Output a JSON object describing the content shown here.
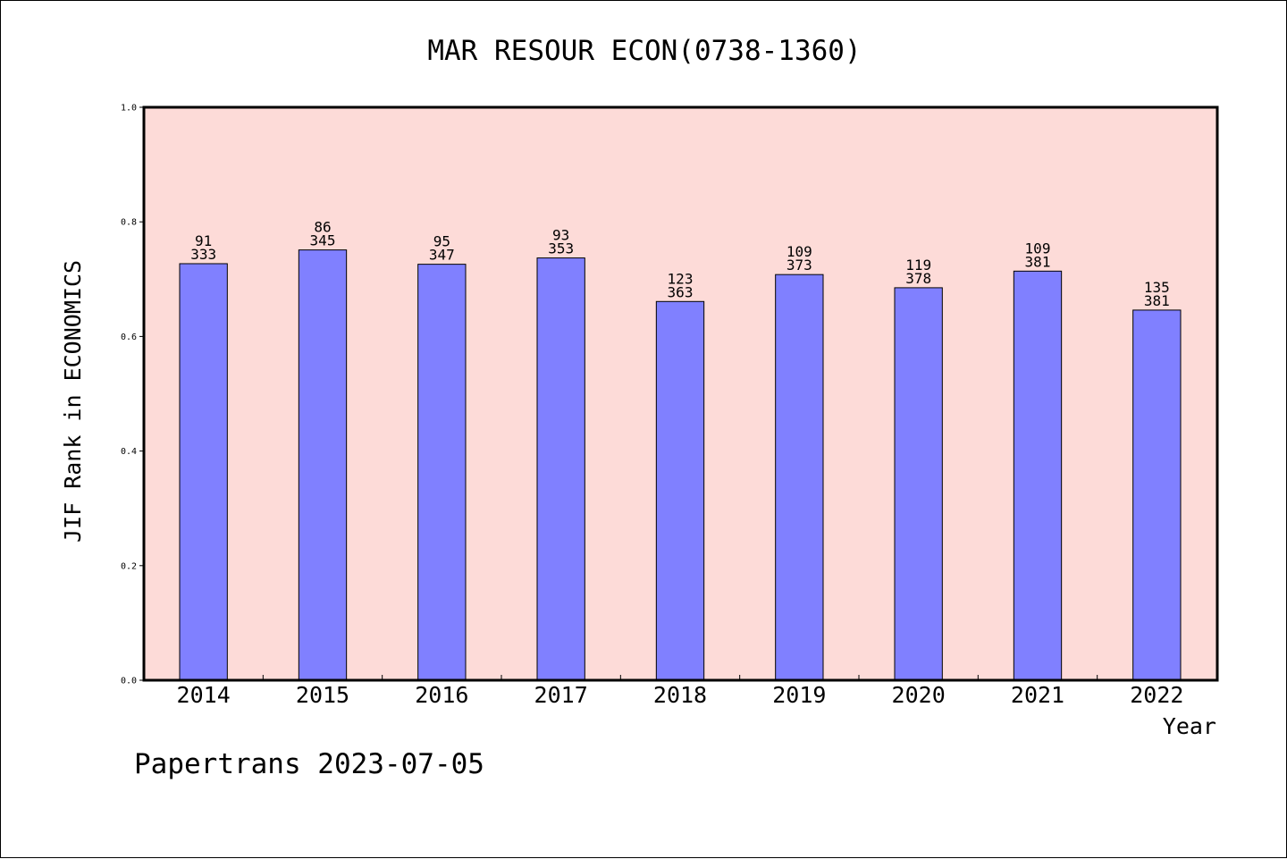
{
  "chart_data": {
    "type": "bar",
    "title": "MAR RESOUR ECON(0738-1360)",
    "xlabel": "Year",
    "ylabel": "JIF Rank in ECONOMICS",
    "ylim": [
      0,
      1.0
    ],
    "yticks": [
      "0.0",
      "0.2",
      "0.4",
      "0.6",
      "0.8",
      "1.0"
    ],
    "grid": false,
    "colors": {
      "plot_background": "#fddbd8",
      "bar_fill": "#8080ff",
      "bar_stroke": "#000000"
    },
    "categories": [
      "2014",
      "2015",
      "2016",
      "2017",
      "2018",
      "2019",
      "2020",
      "2021",
      "2022"
    ],
    "values": [
      0.727,
      0.751,
      0.726,
      0.737,
      0.661,
      0.708,
      0.685,
      0.714,
      0.646
    ],
    "rank": [
      "91",
      "86",
      "95",
      "93",
      "123",
      "109",
      "119",
      "109",
      "135"
    ],
    "total": [
      "333",
      "345",
      "347",
      "353",
      "363",
      "373",
      "378",
      "381",
      "381"
    ]
  },
  "footer": {
    "source_label": "Papertrans 2023-07-05"
  }
}
